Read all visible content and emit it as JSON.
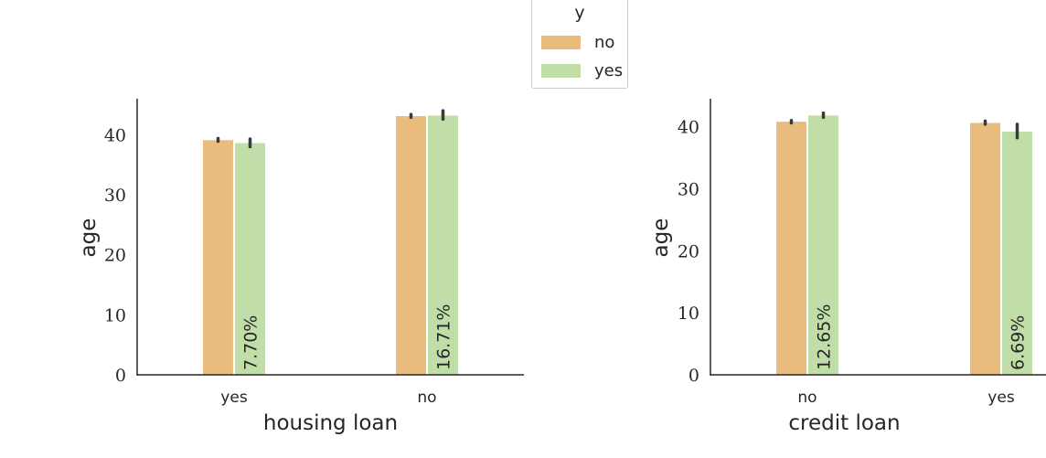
{
  "legend": {
    "title": "y",
    "entries": [
      {
        "label": "no",
        "color": "#e9bc7d"
      },
      {
        "label": "yes",
        "color": "#c1dea8"
      }
    ]
  },
  "chart_data": [
    {
      "type": "bar",
      "xlabel": "housing loan",
      "ylabel": "age",
      "categories": [
        "yes",
        "no"
      ],
      "ylim": [
        0,
        46
      ],
      "yticks": [
        0,
        10,
        20,
        30,
        40
      ],
      "series": [
        {
          "name": "no",
          "color": "#e9bc7d",
          "values": [
            39.1,
            43.1
          ],
          "err_low": [
            38.9,
            42.9
          ],
          "err_high": [
            39.4,
            43.4
          ]
        },
        {
          "name": "yes",
          "color": "#c1dea8",
          "values": [
            38.6,
            43.2
          ],
          "err_low": [
            38.0,
            42.6
          ],
          "err_high": [
            39.3,
            44.0
          ]
        }
      ],
      "annotations": [
        "7.70%",
        "16.71%"
      ]
    },
    {
      "type": "bar",
      "xlabel": "credit loan",
      "ylabel": "age",
      "categories": [
        "no",
        "yes"
      ],
      "ylim": [
        0,
        44.5
      ],
      "yticks": [
        0,
        10,
        20,
        30,
        40
      ],
      "series": [
        {
          "name": "no",
          "color": "#e9bc7d",
          "values": [
            40.8,
            40.6
          ],
          "err_low": [
            40.6,
            40.4
          ],
          "err_high": [
            41.0,
            40.9
          ]
        },
        {
          "name": "yes",
          "color": "#c1dea8",
          "values": [
            41.8,
            39.2
          ],
          "err_low": [
            41.5,
            38.2
          ],
          "err_high": [
            42.2,
            40.4
          ]
        }
      ],
      "annotations": [
        "12.65%",
        "6.69%"
      ]
    }
  ]
}
